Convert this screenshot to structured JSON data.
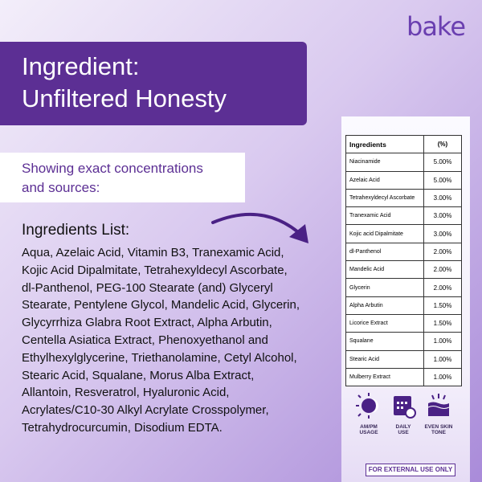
{
  "logo": "bake",
  "header": {
    "title_lines": [
      "Ingredient:",
      "Unfiltered Honesty"
    ],
    "subtitle_lines": [
      "Showing exact concentrations",
      "and sources:"
    ]
  },
  "ingredients_list": {
    "heading": "Ingredients List:",
    "text": "Aqua, Azelaic Acid, Vitamin B3, Tranexamic Acid, Kojic Acid Dipalmitate, Tetrahexyldecyl Ascorbate, dl-Panthenol, PEG-100 Stearate (and) Glyceryl Stearate, Pentylene Glycol, Mandelic Acid, Glycerin, Glycyrrhiza Glabra Root Extract, Alpha Arbutin, Centella Asiatica Extract, Phenoxyethanol and Ethylhexylglycerine, Triethanolamine, Cetyl Alcohol, Stearic Acid, Squalane, Morus Alba Extract, Allantoin, Resveratrol, Hyaluronic Acid, Acrylates/C10-30 Alkyl Acrylate Crosspolymer, Tetrahydrocurcumin, Disodium EDTA."
  },
  "table": {
    "header": [
      "Ingredients",
      "(%)"
    ],
    "rows": [
      [
        "Niacinamide",
        "5.00%"
      ],
      [
        "Azelaic Acid",
        "5.00%"
      ],
      [
        "Tetrahexyldecyl Ascorbate",
        "3.00%"
      ],
      [
        "Tranexamic Acid",
        "3.00%"
      ],
      [
        "Kojic acid Dipalmitate",
        "3.00%"
      ],
      [
        "dl-Panthenol",
        "2.00%"
      ],
      [
        "Mandelic Acid",
        "2.00%"
      ],
      [
        "Glycerin",
        "2.00%"
      ],
      [
        "Alpha Arbutin",
        "1.50%"
      ],
      [
        "Licorice Extract",
        "1.50%"
      ],
      [
        "Squalane",
        "1.00%"
      ],
      [
        "Stearic Acid",
        "1.00%"
      ],
      [
        "Mulberry Extract",
        "1.00%"
      ]
    ]
  },
  "icons": [
    {
      "label_lines": [
        "AM/PM",
        "USAGE"
      ]
    },
    {
      "label_lines": [
        "DAILY",
        "USE"
      ]
    },
    {
      "label_lines": [
        "EVEN SKIN",
        "TONE"
      ]
    }
  ],
  "footer": "FOR EXTERNAL USE ONLY"
}
